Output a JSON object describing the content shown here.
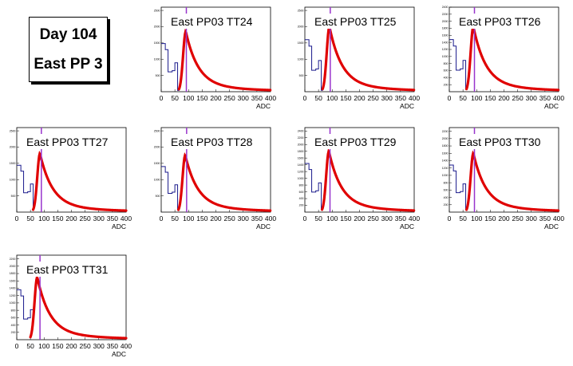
{
  "header": {
    "line1": "Day 104",
    "line2": "East PP 3"
  },
  "colors": {
    "histogram": "#1a1a8c",
    "fit": "#e00000",
    "marker": "#9933cc"
  },
  "chart_data": [
    {
      "type": "line",
      "title": "East PP03 TT24",
      "xlabel": "ADC",
      "xlim": [
        0,
        400
      ],
      "ylim": [
        0,
        2600
      ],
      "xticks": [
        "0",
        "50",
        "100",
        "150",
        "200",
        "250",
        "300",
        "350",
        "400"
      ],
      "yticks": [
        "500",
        "1000",
        "1500",
        "2000",
        "2500"
      ],
      "peak_x": 90,
      "peak_y": 1850,
      "marker_x": 92
    },
    {
      "type": "line",
      "title": "East PP03 TT25",
      "xlabel": "ADC",
      "xlim": [
        0,
        400
      ],
      "ylim": [
        0,
        2600
      ],
      "xticks": [
        "0",
        "50",
        "100",
        "150",
        "200",
        "250",
        "300",
        "350",
        "400"
      ],
      "yticks": [
        "500",
        "1000",
        "1500",
        "2000",
        "2500"
      ],
      "peak_x": 90,
      "peak_y": 2000,
      "marker_x": 93
    },
    {
      "type": "line",
      "title": "East PP03 TT26",
      "xlabel": "ADC",
      "xlim": [
        0,
        400
      ],
      "ylim": [
        0,
        2400
      ],
      "xticks": [
        "0",
        "50",
        "100",
        "150",
        "200",
        "250",
        "300",
        "350",
        "400"
      ],
      "yticks": [
        "200",
        "400",
        "600",
        "800",
        "1000",
        "1200",
        "1400",
        "1600",
        "1800",
        "2000",
        "2200",
        "2400"
      ],
      "peak_x": 88,
      "peak_y": 1850,
      "marker_x": 92
    },
    {
      "type": "line",
      "title": "East PP03 TT27",
      "xlabel": "ADC",
      "xlim": [
        0,
        400
      ],
      "ylim": [
        0,
        2600
      ],
      "xticks": [
        "0",
        "50",
        "100",
        "150",
        "200",
        "250",
        "300",
        "350",
        "400"
      ],
      "yticks": [
        "500",
        "1000",
        "1500",
        "2000",
        "2500"
      ],
      "peak_x": 85,
      "peak_y": 1800,
      "marker_x": 90
    },
    {
      "type": "line",
      "title": "East PP03 TT28",
      "xlabel": "ADC",
      "xlim": [
        0,
        400
      ],
      "ylim": [
        0,
        2600
      ],
      "xticks": [
        "0",
        "50",
        "100",
        "150",
        "200",
        "250",
        "300",
        "350",
        "400"
      ],
      "yticks": [
        "500",
        "1000",
        "1500",
        "2000",
        "2500"
      ],
      "peak_x": 88,
      "peak_y": 1750,
      "marker_x": 93
    },
    {
      "type": "line",
      "title": "East PP03 TT29",
      "xlabel": "ADC",
      "xlim": [
        0,
        400
      ],
      "ylim": [
        0,
        2500
      ],
      "xticks": [
        "0",
        "50",
        "100",
        "150",
        "200",
        "250",
        "300",
        "350",
        "400"
      ],
      "yticks": [
        "200",
        "400",
        "600",
        "800",
        "1000",
        "1200",
        "1400",
        "1600",
        "1800",
        "2000",
        "2200",
        "2400"
      ],
      "peak_x": 88,
      "peak_y": 1800,
      "marker_x": 92
    },
    {
      "type": "line",
      "title": "East PP03 TT30",
      "xlabel": "ADC",
      "xlim": [
        0,
        400
      ],
      "ylim": [
        0,
        2300
      ],
      "xticks": [
        "0",
        "50",
        "100",
        "150",
        "200",
        "250",
        "300",
        "350",
        "400"
      ],
      "yticks": [
        "200",
        "400",
        "600",
        "800",
        "1000",
        "1200",
        "1400",
        "1600",
        "1800",
        "2000",
        "2200"
      ],
      "peak_x": 88,
      "peak_y": 1600,
      "marker_x": 92
    },
    {
      "type": "line",
      "title": "East PP03 TT31",
      "xlabel": "ADC",
      "xlim": [
        0,
        400
      ],
      "ylim": [
        0,
        2300
      ],
      "xticks": [
        "0",
        "50",
        "100",
        "150",
        "200",
        "250",
        "300",
        "350",
        "400"
      ],
      "yticks": [
        "200",
        "400",
        "600",
        "800",
        "1000",
        "1200",
        "1400",
        "1600",
        "1800",
        "2000",
        "2200"
      ],
      "peak_x": 75,
      "peak_y": 1700,
      "marker_x": 85
    }
  ]
}
